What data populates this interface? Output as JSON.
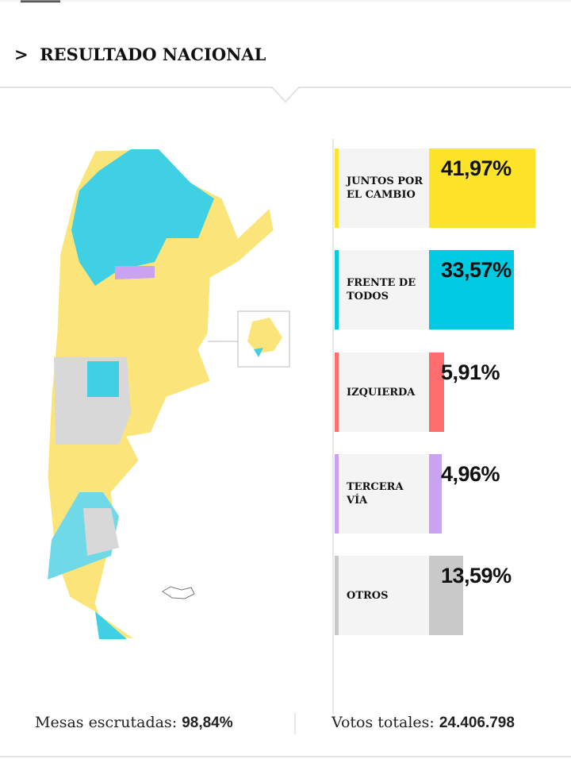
{
  "header": {
    "title": "RESULTADO NACIONAL"
  },
  "chart_data": {
    "type": "bar",
    "categories": [
      "JUNTOS POR EL CAMBIO",
      "FRENTE DE TODOS",
      "IZQUIERDA",
      "TERCERA VÍA",
      "OTROS"
    ],
    "values": [
      41.97,
      33.57,
      5.91,
      4.96,
      13.59
    ],
    "value_labels": [
      "41,97%",
      "33,57%",
      "5,91%",
      "4,96%",
      "13,59%"
    ],
    "colors": [
      "#fde428",
      "#00c9e2",
      "#ff6e6e",
      "#c9a2f2",
      "#c9c9c9"
    ]
  },
  "footer": {
    "mesas_label": "Mesas escrutadas:",
    "mesas_value": "98,84%",
    "votos_label": "Votos totales:",
    "votos_value": "24.406.798"
  }
}
